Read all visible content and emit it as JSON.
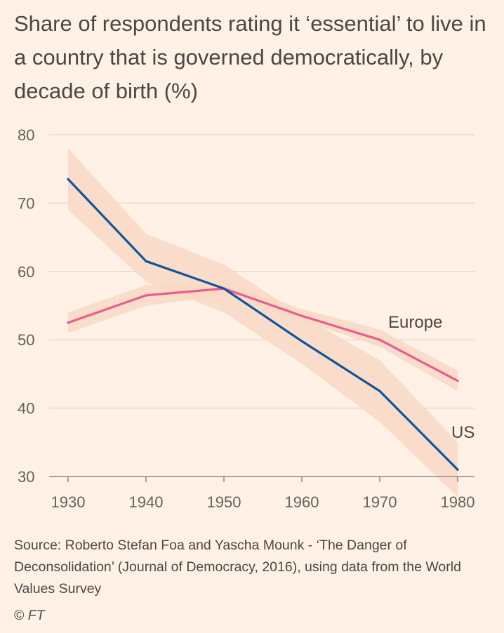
{
  "chart_data": {
    "type": "line",
    "title": "Share of respondents rating it ‘essential’ to live in a country that is governed democratically, by decade of birth (%)",
    "xlabel": "",
    "ylabel": "",
    "x": [
      1930,
      1940,
      1950,
      1960,
      1970,
      1980
    ],
    "x_tick_labels": [
      "1930",
      "1940",
      "1950",
      "1960",
      "1970",
      "1980"
    ],
    "ylim": [
      30,
      80
    ],
    "y_ticks": [
      30,
      40,
      50,
      60,
      70,
      80
    ],
    "y_tick_labels": [
      "30",
      "40",
      "50",
      "60",
      "70",
      "80"
    ],
    "grid": true,
    "series": [
      {
        "name": "Europe",
        "label": "Europe",
        "color": "#E95D8C",
        "values": [
          52.5,
          56.5,
          57.5,
          53.5,
          50,
          44
        ],
        "band_lower": [
          51,
          55,
          56.5,
          52.8,
          49,
          42.5
        ],
        "band_upper": [
          54,
          58,
          58.5,
          54.5,
          51.5,
          45.5
        ]
      },
      {
        "name": "US",
        "label": "US",
        "color": "#0F5499",
        "values": [
          73.5,
          61.5,
          57.5,
          49.8,
          42.5,
          31
        ],
        "band_lower": [
          69,
          58.5,
          54,
          46.5,
          38,
          27
        ],
        "band_upper": [
          78,
          65.5,
          61,
          53.5,
          47,
          35
        ]
      }
    ],
    "band_color": "#F8D9C6",
    "source": "Source: Roberto Stefan Foa and Yascha Mounk - ‘The Danger of Deconsolidation’ (Journal of Democracy, 2016), using data from the World Values Survey",
    "copyright_symbol": "©",
    "copyright_org": "FT"
  }
}
